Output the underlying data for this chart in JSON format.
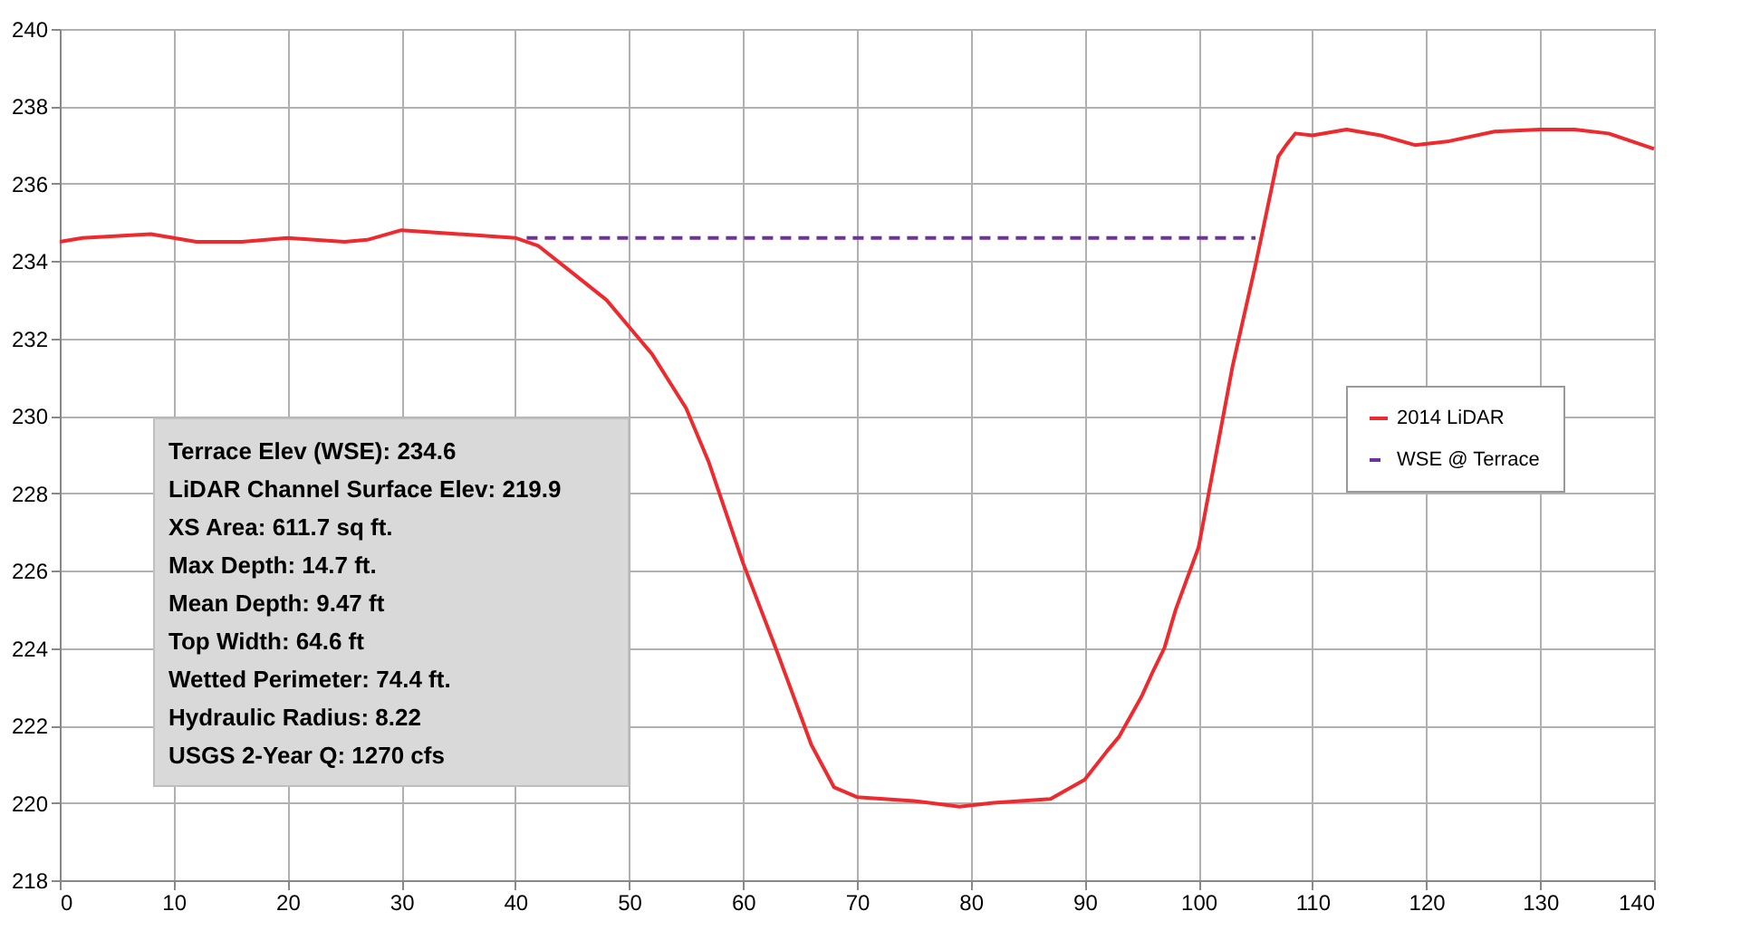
{
  "chart_data": {
    "type": "line",
    "xlim": [
      0,
      140
    ],
    "xticks": [
      0,
      10,
      20,
      30,
      40,
      50,
      60,
      70,
      80,
      90,
      100,
      110,
      120,
      130,
      140
    ],
    "ylim": [
      218,
      240
    ],
    "yticks": [
      218,
      220,
      222,
      224,
      226,
      228,
      230,
      232,
      234,
      236,
      238,
      240
    ],
    "grid": true,
    "legend": "right",
    "marker": "none",
    "series": [
      {
        "name": "2014 LiDAR",
        "color": "#ee2a2e",
        "line_style": "solid",
        "x": [
          0,
          2,
          8,
          10,
          12,
          16,
          20,
          25,
          27,
          30,
          35,
          40,
          42,
          45,
          48,
          50,
          52,
          55,
          57,
          60,
          63,
          66,
          68,
          70,
          75,
          79,
          82,
          87,
          90,
          92,
          93,
          95,
          96,
          97,
          98,
          100,
          103,
          105,
          107,
          107.7,
          108.5,
          110,
          113,
          116,
          119,
          122,
          126,
          130,
          133,
          136,
          140
        ],
        "values": [
          234.5,
          234.6,
          234.7,
          234.6,
          234.5,
          234.5,
          234.6,
          234.5,
          234.55,
          234.8,
          234.7,
          234.6,
          234.4,
          233.7,
          233.0,
          232.3,
          231.6,
          230.2,
          228.8,
          226.2,
          223.9,
          221.5,
          220.4,
          220.15,
          220.05,
          219.9,
          220.0,
          220.1,
          220.6,
          221.35,
          221.7,
          222.75,
          223.4,
          224.0,
          225.0,
          226.6,
          231.3,
          233.9,
          236.7,
          237.0,
          237.3,
          237.25,
          237.4,
          237.25,
          237.0,
          237.1,
          237.35,
          237.4,
          237.4,
          237.3,
          236.9
        ]
      },
      {
        "name": "WSE @ Terrace",
        "color": "#7030a0",
        "line_style": "dashed",
        "x": [
          41,
          105
        ],
        "values": [
          234.6,
          234.6
        ]
      }
    ],
    "annotations": [
      "Terrace Elev (WSE): 234.6",
      "LiDAR Channel Surface Elev: 219.9",
      "XS Area: 611.7 sq ft.",
      "Max Depth: 14.7 ft.",
      "Mean Depth: 9.47 ft",
      "Top Width: 64.6 ft",
      "Wetted Perimeter: 74.4 ft.",
      "Hydraulic Radius: 8.22",
      "USGS 2-Year Q: 1270 cfs"
    ]
  }
}
